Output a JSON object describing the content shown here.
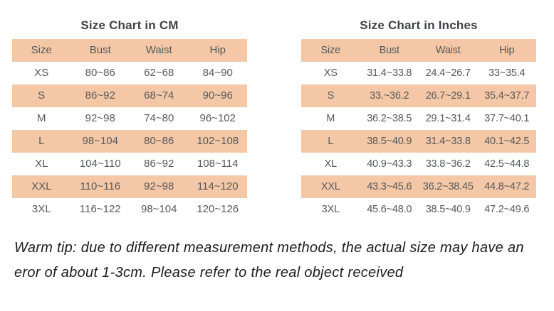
{
  "accent_color": "#f4c8a6",
  "text_color": "#57595c",
  "title_color": "#3c4247",
  "chart_data": [
    {
      "type": "table",
      "title": "Size Chart in CM",
      "headers": [
        "Size",
        "Bust",
        "Waist",
        "Hip"
      ],
      "rows": [
        [
          "XS",
          "80~86",
          "62~68",
          "84~90"
        ],
        [
          "S",
          "86~92",
          "68~74",
          "90~96"
        ],
        [
          "M",
          "92~98",
          "74~80",
          "96~102"
        ],
        [
          "L",
          "98~104",
          "80~86",
          "102~108"
        ],
        [
          "XL",
          "104~110",
          "86~92",
          "108~114"
        ],
        [
          "XXL",
          "110~116",
          "92~98",
          "114~120"
        ],
        [
          "3XL",
          "116~122",
          "98~104",
          "120~126"
        ]
      ],
      "striped_rows": [
        "header",
        "S",
        "L",
        "XXL"
      ]
    },
    {
      "type": "table",
      "title": "Size Chart in Inches",
      "headers": [
        "Size",
        "Bust",
        "Waist",
        "Hip"
      ],
      "rows": [
        [
          "XS",
          "31.4~33.8",
          "24.4~26.7",
          "33~35.4"
        ],
        [
          "S",
          "33.~36.2",
          "26.7~29.1",
          "35.4~37.7"
        ],
        [
          "M",
          "36.2~38.5",
          "29.1~31.4",
          "37.7~40.1"
        ],
        [
          "L",
          "38.5~40.9",
          "31.4~33.8",
          "40.1~42.5"
        ],
        [
          "XL",
          "40.9~43.3",
          "33.8~36.2",
          "42.5~44.8"
        ],
        [
          "XXL",
          "43.3~45.6",
          "36.2~38.45",
          "44.8~47.2"
        ],
        [
          "3XL",
          "45.6~48.0",
          "38.5~40.9",
          "47.2~49.6"
        ]
      ],
      "striped_rows": [
        "header",
        "S",
        "L",
        "XXL"
      ]
    }
  ],
  "note": {
    "lines": [
      "Warm tip: due to different measurement methods, the actual size may have an",
      "eror of about 1-3cm. Please refer to the real object received"
    ]
  }
}
